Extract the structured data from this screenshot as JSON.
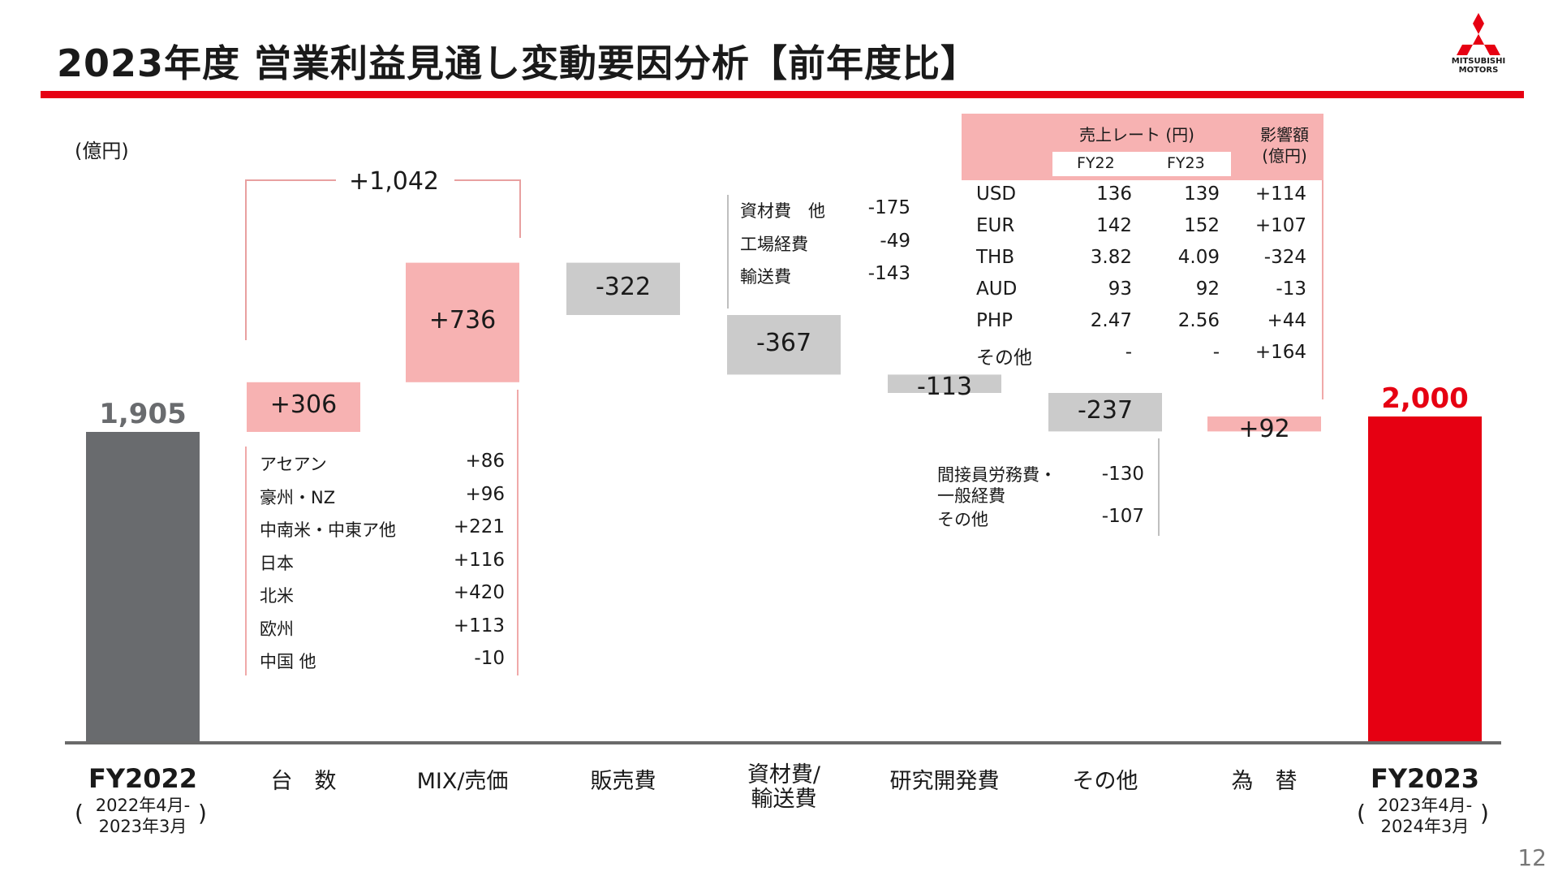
{
  "title": "2023年度 営業利益見通し変動要因分析【前年度比】",
  "logo": {
    "line1": "MITSUBISHI",
    "line2": "MOTORS"
  },
  "unit": "(億円)",
  "page_number": "12",
  "colors": {
    "accent": "#e60012",
    "gray_bar": "#696b6e",
    "pos": "#f7b2b2",
    "neg": "#cbcbcb"
  },
  "chart_data": {
    "type": "waterfall",
    "categories": [
      "FY2022",
      "台　数",
      "MIX/売価",
      "販売費",
      "資材費/輸送費",
      "研究開発費",
      "その他",
      "為　替",
      "FY2023"
    ],
    "values": [
      1905,
      306,
      736,
      -322,
      -367,
      -113,
      -237,
      92,
      2000
    ],
    "value_labels": [
      "1,905",
      "+306",
      "+736",
      "-322",
      "-367",
      "-113",
      "-237",
      "+92",
      "2,000"
    ],
    "volume_mix_total_label": "+1,042",
    "start_sub": [
      "2022年4月-",
      "2023年3月"
    ],
    "end_sub": [
      "2023年4月-",
      "2024年3月"
    ],
    "volume_breakdown": [
      {
        "label": "アセアン",
        "value": "+86"
      },
      {
        "label": "豪州・NZ",
        "value": "+96"
      },
      {
        "label": "中南米・中東ア他",
        "value": "+221"
      },
      {
        "label": "日本",
        "value": "+116"
      },
      {
        "label": "北米",
        "value": "+420"
      },
      {
        "label": "欧州",
        "value": "+113"
      },
      {
        "label": "中国 他",
        "value": "-10"
      }
    ],
    "material_breakdown": [
      {
        "label": "資材費　他",
        "value": "-175"
      },
      {
        "label": "工場経費",
        "value": "-49"
      },
      {
        "label": "輸送費",
        "value": "-143"
      }
    ],
    "other_breakdown": [
      {
        "label": "間接員労務費・\n一般経費",
        "value": "-130"
      },
      {
        "label": "その他",
        "value": "-107"
      }
    ],
    "fx_table": {
      "header_rate": "売上レート (円)",
      "header_impact": "影響額\n(億円)",
      "col_fy22": "FY22",
      "col_fy23": "FY23",
      "rows": [
        {
          "ccy": "USD",
          "fy22": "136",
          "fy23": "139",
          "impact": "+114"
        },
        {
          "ccy": "EUR",
          "fy22": "142",
          "fy23": "152",
          "impact": "+107"
        },
        {
          "ccy": "THB",
          "fy22": "3.82",
          "fy23": "4.09",
          "impact": "-324"
        },
        {
          "ccy": "AUD",
          "fy22": "93",
          "fy23": "92",
          "impact": "-13"
        },
        {
          "ccy": "PHP",
          "fy22": "2.47",
          "fy23": "2.56",
          "impact": "+44"
        },
        {
          "ccy": "その他",
          "fy22": "-",
          "fy23": "-",
          "impact": "+164"
        }
      ]
    }
  }
}
